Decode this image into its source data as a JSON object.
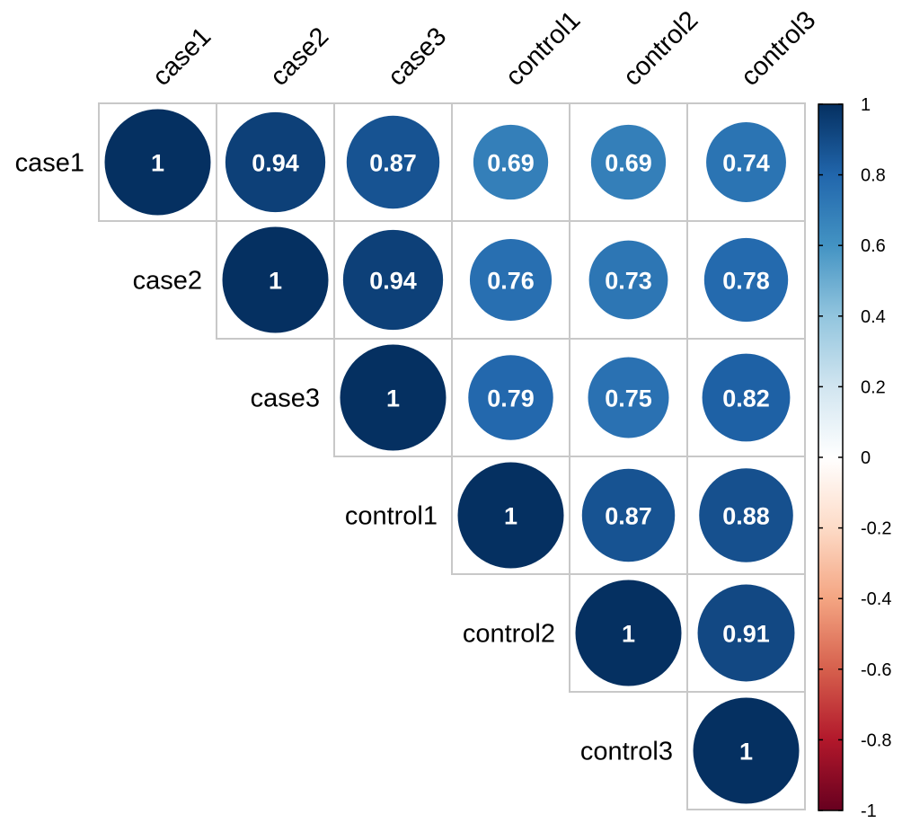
{
  "chart_data": {
    "type": "heatmap",
    "style": "circle correlation matrix, upper triangle",
    "variables": [
      "case1",
      "case2",
      "case3",
      "control1",
      "control2",
      "control3"
    ],
    "matrix": [
      [
        1,
        0.94,
        0.87,
        0.69,
        0.69,
        0.74
      ],
      [
        null,
        1,
        0.94,
        0.76,
        0.73,
        0.78
      ],
      [
        null,
        null,
        1,
        0.79,
        0.75,
        0.82
      ],
      [
        null,
        null,
        null,
        1,
        0.87,
        0.88
      ],
      [
        null,
        null,
        null,
        null,
        1,
        0.91
      ],
      [
        null,
        null,
        null,
        null,
        null,
        1
      ]
    ],
    "value_labels": [
      [
        "1",
        "0.94",
        "0.87",
        "0.69",
        "0.69",
        "0.74"
      ],
      [
        "",
        "1",
        "0.94",
        "0.76",
        "0.73",
        "0.78"
      ],
      [
        "",
        "",
        "1",
        "0.79",
        "0.75",
        "0.82"
      ],
      [
        "",
        "",
        "",
        "1",
        "0.87",
        "0.88"
      ],
      [
        "",
        "",
        "",
        "",
        "1",
        "0.91"
      ],
      [
        "",
        "",
        "",
        "",
        "",
        "1"
      ]
    ],
    "color_scale": {
      "range": [
        -1,
        1
      ],
      "ticks": [
        "1",
        "0.8",
        "0.6",
        "0.4",
        "0.2",
        "0",
        "-0.2",
        "-0.4",
        "-0.6",
        "-0.8",
        "-1"
      ],
      "colors": [
        "#67001F",
        "#B2182B",
        "#D6604D",
        "#F4A582",
        "#FDDBC7",
        "#FFFFFF",
        "#D1E5F0",
        "#92C5DE",
        "#4393C3",
        "#2166AC",
        "#053061"
      ]
    },
    "grid_color": "#c8c8c8",
    "legend_position": "right"
  }
}
